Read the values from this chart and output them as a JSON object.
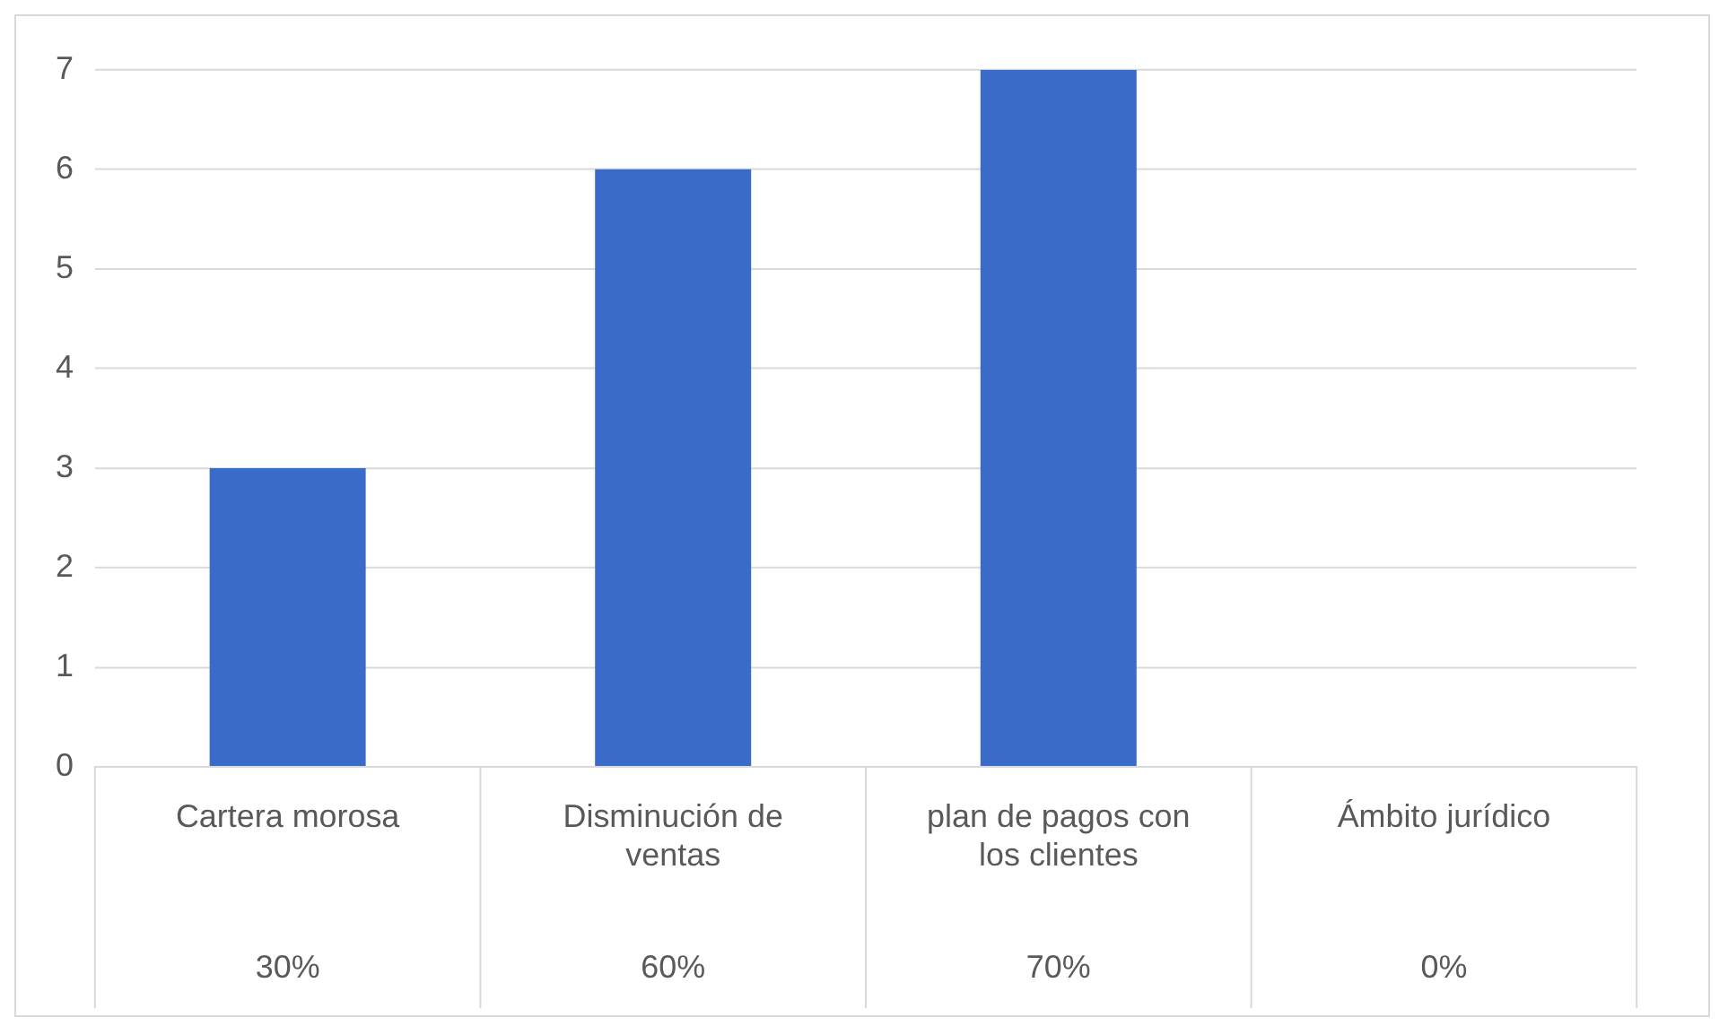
{
  "chart_data": {
    "type": "bar",
    "categories": [
      "Cartera morosa",
      "Disminución de ventas",
      "plan de pagos con los clientes",
      "Ámbito jurídico"
    ],
    "values": [
      3,
      6,
      7,
      0
    ],
    "color": "#3a6bc9",
    "annotations": [
      "30%",
      "60%",
      "70%",
      "0%"
    ],
    "ylim": [
      0,
      7
    ],
    "yticks": [
      0,
      1,
      2,
      3,
      4,
      5,
      6,
      7
    ],
    "grid": "y",
    "legend": false
  }
}
